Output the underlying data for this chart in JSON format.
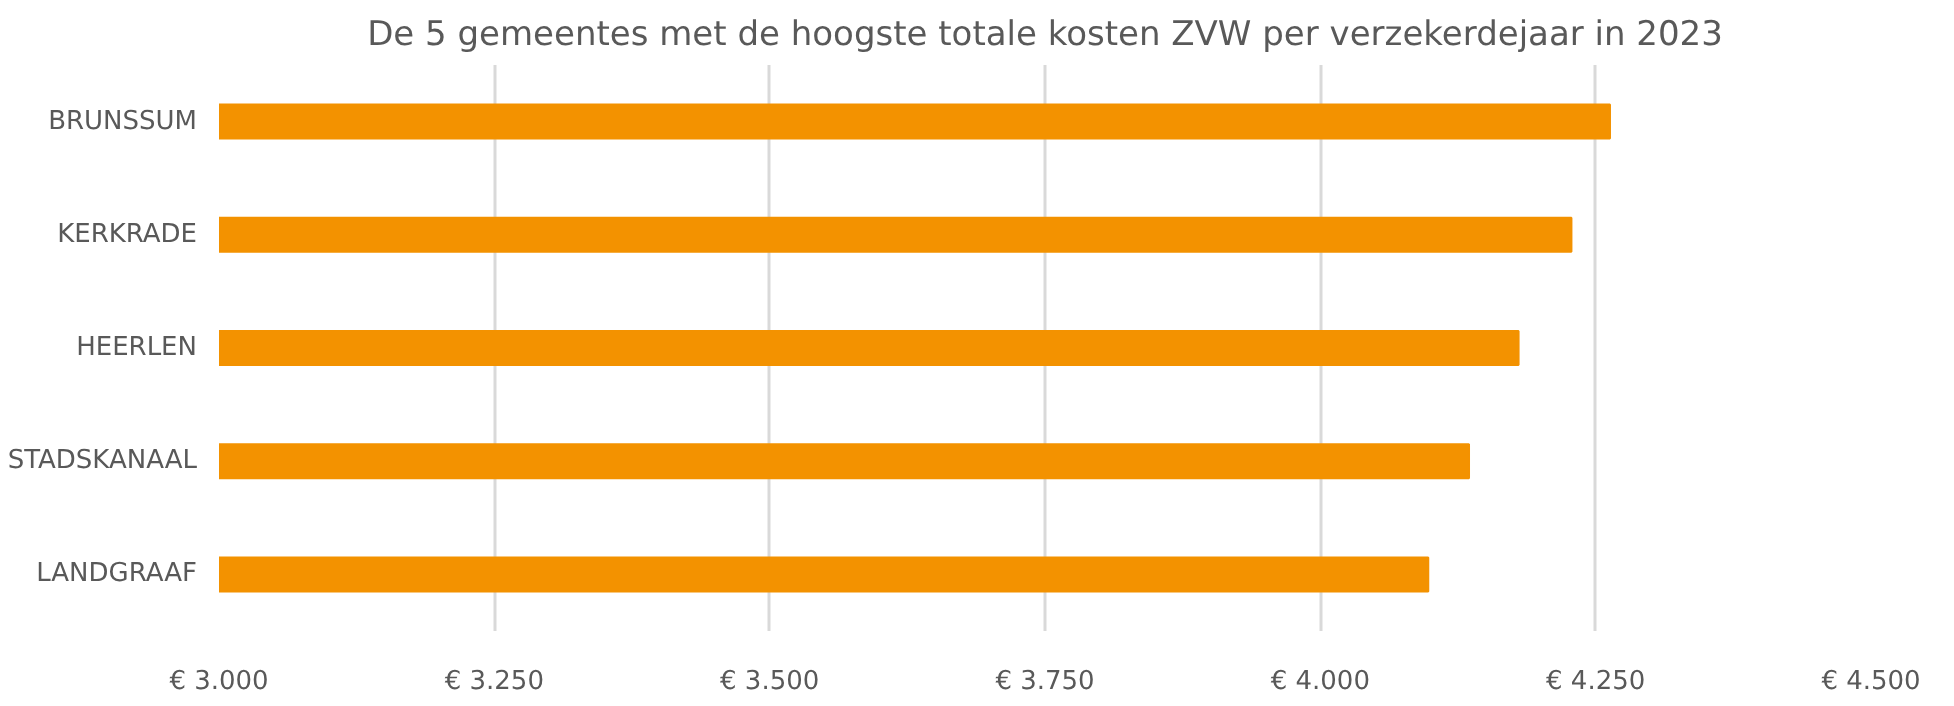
{
  "chart_data": {
    "type": "bar",
    "orientation": "horizontal",
    "title": "De 5 gemeentes met de hoogste totale kosten ZVW per verzekerdejaar in 2023",
    "categories": [
      "BRUNSSUM",
      "KERKRADE",
      "HEERLEN",
      "STADSKANAAL",
      "LANDGRAAF"
    ],
    "values": [
      4263,
      4228,
      4180,
      4135,
      4098
    ],
    "color": "#f39200",
    "xlim": [
      3000,
      4500
    ],
    "xticks": [
      {
        "value": 3000,
        "label": "€ 3.000"
      },
      {
        "value": 3250,
        "label": "€ 3.250"
      },
      {
        "value": 3500,
        "label": "€ 3.500"
      },
      {
        "value": 3750,
        "label": "€ 3.750"
      },
      {
        "value": 4000,
        "label": "€ 4.000"
      },
      {
        "value": 4250,
        "label": "€ 4.250"
      },
      {
        "value": 4500,
        "label": "€ 4.500"
      }
    ],
    "grid": "x"
  }
}
